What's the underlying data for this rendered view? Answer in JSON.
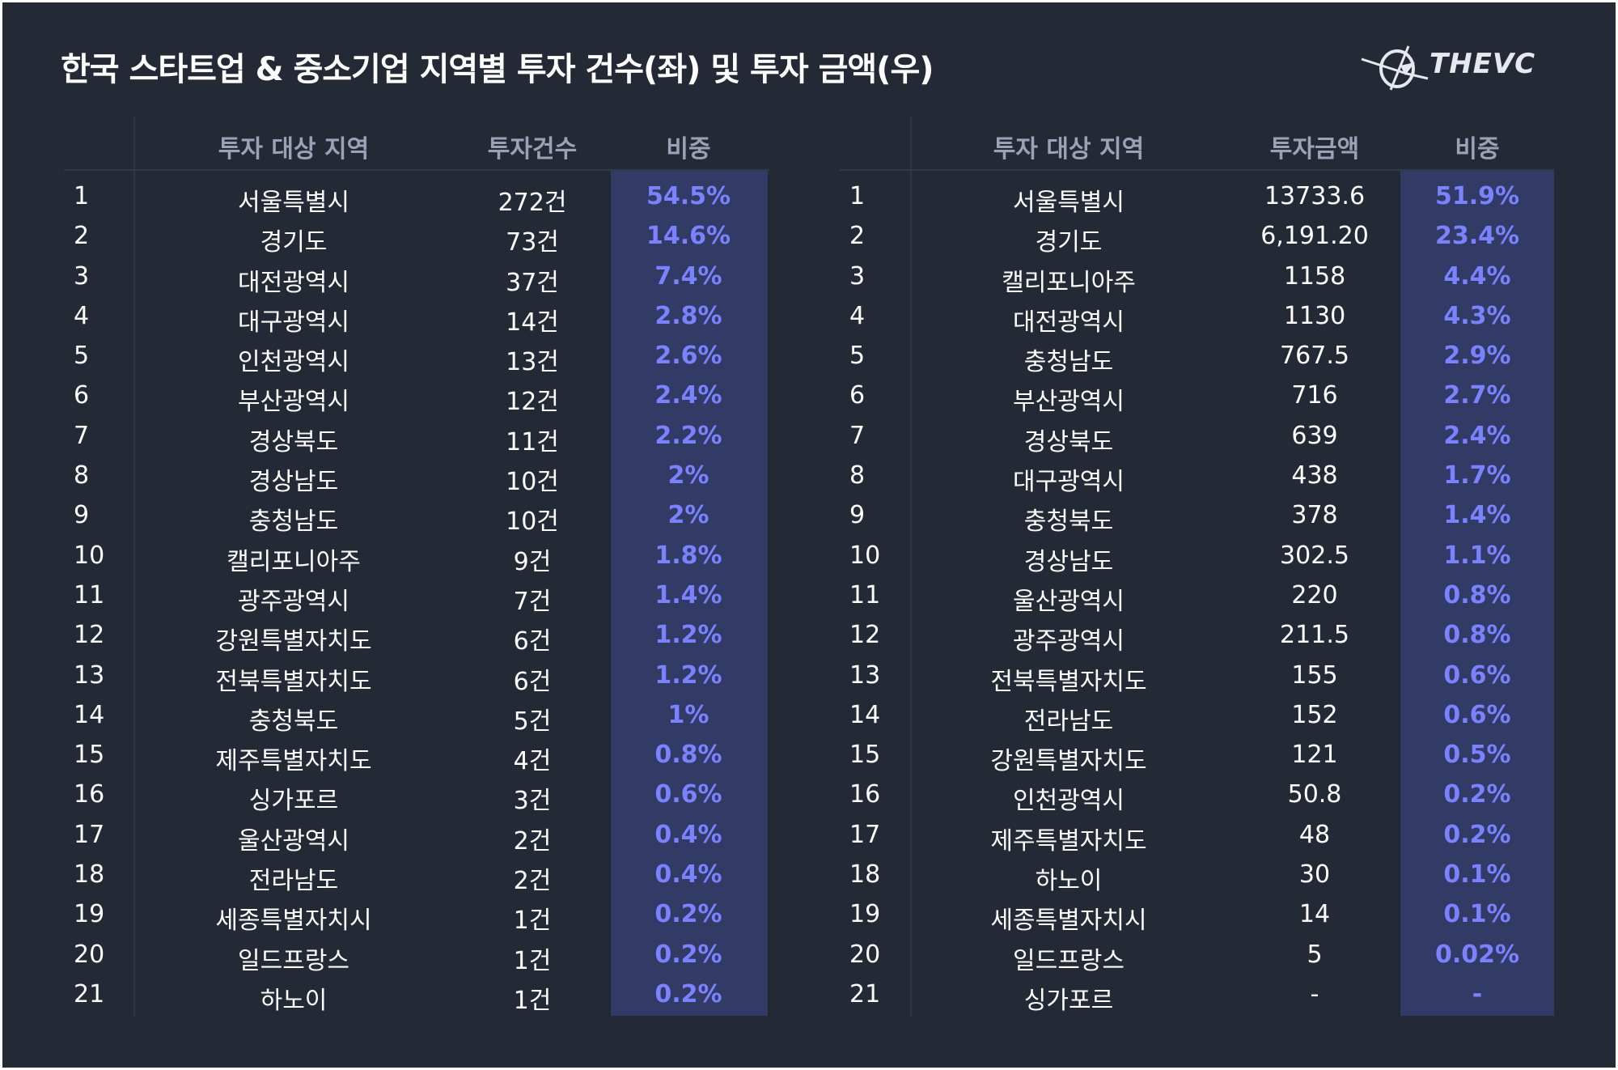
{
  "title": "한국 스타트업 & 중소기업 지역별 투자 건수(좌) 및 투자 금액(우)",
  "logo": {
    "name": "thevc-logo",
    "text": "THEVC"
  },
  "colors": {
    "background": "#232935",
    "highlight_column": "#323a66",
    "percent_text": "#7b82ff",
    "header_text": "#9ca2b6",
    "body_text": "#ffffff"
  },
  "chart_data": [
    {
      "type": "table",
      "columns": [
        "",
        "투자 대상 지역",
        "투자건수",
        "비중"
      ],
      "rows": [
        {
          "rank": "1",
          "region": "서울특별시",
          "value": "272건",
          "share": "54.5%"
        },
        {
          "rank": "2",
          "region": "경기도",
          "value": "73건",
          "share": "14.6%"
        },
        {
          "rank": "3",
          "region": "대전광역시",
          "value": "37건",
          "share": "7.4%"
        },
        {
          "rank": "4",
          "region": "대구광역시",
          "value": "14건",
          "share": "2.8%"
        },
        {
          "rank": "5",
          "region": "인천광역시",
          "value": "13건",
          "share": "2.6%"
        },
        {
          "rank": "6",
          "region": "부산광역시",
          "value": "12건",
          "share": "2.4%"
        },
        {
          "rank": "7",
          "region": "경상북도",
          "value": "11건",
          "share": "2.2%"
        },
        {
          "rank": "8",
          "region": "경상남도",
          "value": "10건",
          "share": "2%"
        },
        {
          "rank": "9",
          "region": "충청남도",
          "value": "10건",
          "share": "2%"
        },
        {
          "rank": "10",
          "region": "캘리포니아주",
          "value": "9건",
          "share": "1.8%"
        },
        {
          "rank": "11",
          "region": "광주광역시",
          "value": "7건",
          "share": "1.4%"
        },
        {
          "rank": "12",
          "region": "강원특별자치도",
          "value": "6건",
          "share": "1.2%"
        },
        {
          "rank": "13",
          "region": "전북특별자치도",
          "value": "6건",
          "share": "1.2%"
        },
        {
          "rank": "14",
          "region": "충청북도",
          "value": "5건",
          "share": "1%"
        },
        {
          "rank": "15",
          "region": "제주특별자치도",
          "value": "4건",
          "share": "0.8%"
        },
        {
          "rank": "16",
          "region": "싱가포르",
          "value": "3건",
          "share": "0.6%"
        },
        {
          "rank": "17",
          "region": "울산광역시",
          "value": "2건",
          "share": "0.4%"
        },
        {
          "rank": "18",
          "region": "전라남도",
          "value": "2건",
          "share": "0.4%"
        },
        {
          "rank": "19",
          "region": "세종특별자치시",
          "value": "1건",
          "share": "0.2%"
        },
        {
          "rank": "20",
          "region": "일드프랑스",
          "value": "1건",
          "share": "0.2%"
        },
        {
          "rank": "21",
          "region": "하노이",
          "value": "1건",
          "share": "0.2%"
        }
      ]
    },
    {
      "type": "table",
      "columns": [
        "",
        "투자 대상 지역",
        "투자금액",
        "비중"
      ],
      "rows": [
        {
          "rank": "1",
          "region": "서울특별시",
          "value": "13733.6",
          "share": "51.9%"
        },
        {
          "rank": "2",
          "region": "경기도",
          "value": "6,191.20",
          "share": "23.4%"
        },
        {
          "rank": "3",
          "region": "캘리포니아주",
          "value": "1158",
          "share": "4.4%"
        },
        {
          "rank": "4",
          "region": "대전광역시",
          "value": "1130",
          "share": "4.3%"
        },
        {
          "rank": "5",
          "region": "충청남도",
          "value": "767.5",
          "share": "2.9%"
        },
        {
          "rank": "6",
          "region": "부산광역시",
          "value": "716",
          "share": "2.7%"
        },
        {
          "rank": "7",
          "region": "경상북도",
          "value": "639",
          "share": "2.4%"
        },
        {
          "rank": "8",
          "region": "대구광역시",
          "value": "438",
          "share": "1.7%"
        },
        {
          "rank": "9",
          "region": "충청북도",
          "value": "378",
          "share": "1.4%"
        },
        {
          "rank": "10",
          "region": "경상남도",
          "value": "302.5",
          "share": "1.1%"
        },
        {
          "rank": "11",
          "region": "울산광역시",
          "value": "220",
          "share": "0.8%"
        },
        {
          "rank": "12",
          "region": "광주광역시",
          "value": "211.5",
          "share": "0.8%"
        },
        {
          "rank": "13",
          "region": "전북특별자치도",
          "value": "155",
          "share": "0.6%"
        },
        {
          "rank": "14",
          "region": "전라남도",
          "value": "152",
          "share": "0.6%"
        },
        {
          "rank": "15",
          "region": "강원특별자치도",
          "value": "121",
          "share": "0.5%"
        },
        {
          "rank": "16",
          "region": "인천광역시",
          "value": "50.8",
          "share": "0.2%"
        },
        {
          "rank": "17",
          "region": "제주특별자치도",
          "value": "48",
          "share": "0.2%"
        },
        {
          "rank": "18",
          "region": "하노이",
          "value": "30",
          "share": "0.1%"
        },
        {
          "rank": "19",
          "region": "세종특별자치시",
          "value": "14",
          "share": "0.1%"
        },
        {
          "rank": "20",
          "region": "일드프랑스",
          "value": "5",
          "share": "0.02%"
        },
        {
          "rank": "21",
          "region": "싱가포르",
          "value": "-",
          "share": "-"
        }
      ]
    }
  ]
}
